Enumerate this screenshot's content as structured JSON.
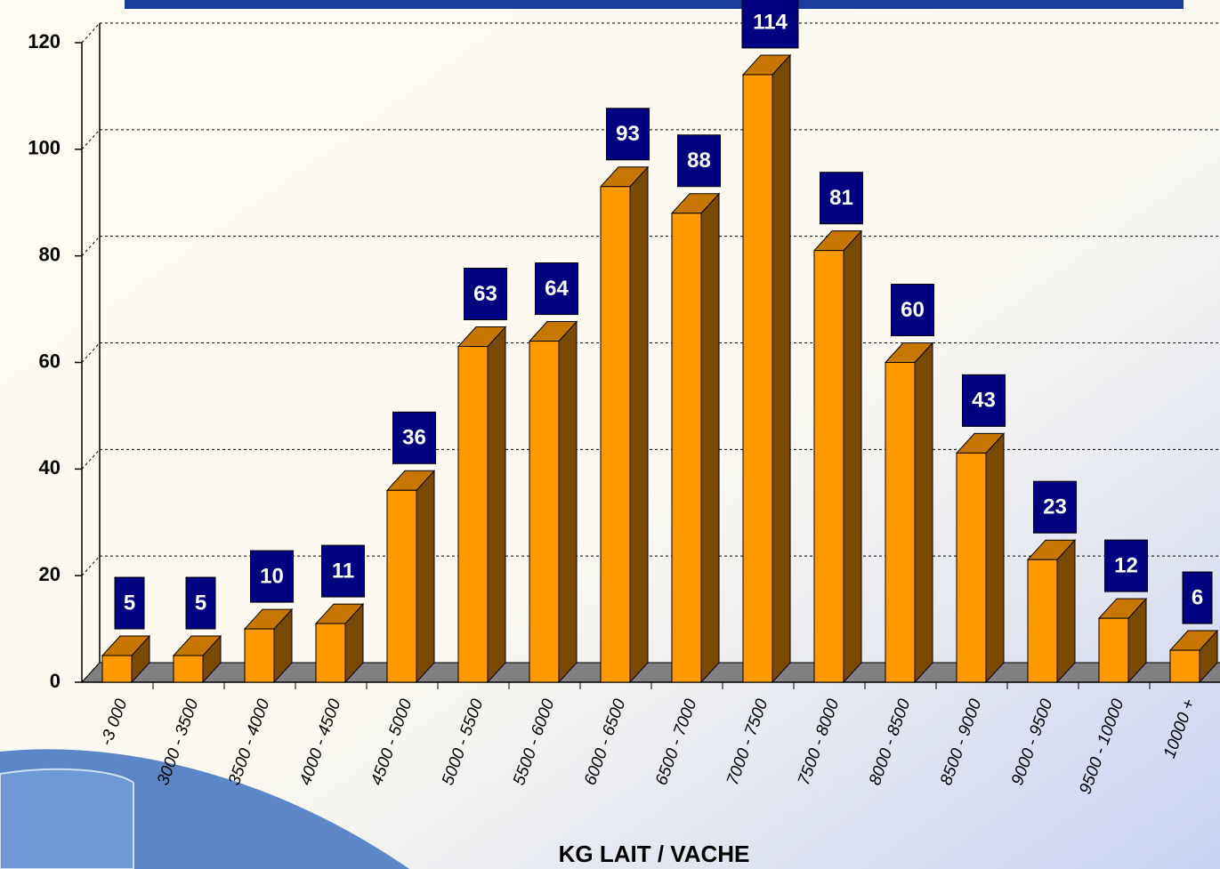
{
  "chart_data": {
    "type": "bar3d",
    "x_label": "KG LAIT / VACHE",
    "categories": [
      "-3 000",
      "3000 - 3500",
      "3500 - 4000",
      "4000 - 4500",
      "4500 - 5000",
      "5000 - 5500",
      "5500 - 6000",
      "6000 - 6500",
      "6500 - 7000",
      "7000 - 7500",
      "7500 - 8000",
      "8000 - 8500",
      "8500 - 9000",
      "9000 - 9500",
      "9500 - 10000",
      "10000 +"
    ],
    "values": [
      5,
      5,
      10,
      11,
      36,
      63,
      64,
      93,
      88,
      114,
      81,
      60,
      43,
      23,
      12,
      6
    ],
    "color": "#ff9900",
    "ylim": [
      0,
      120
    ],
    "yticks": [
      0,
      20,
      40,
      60,
      80,
      100,
      120
    ],
    "grid": true
  }
}
